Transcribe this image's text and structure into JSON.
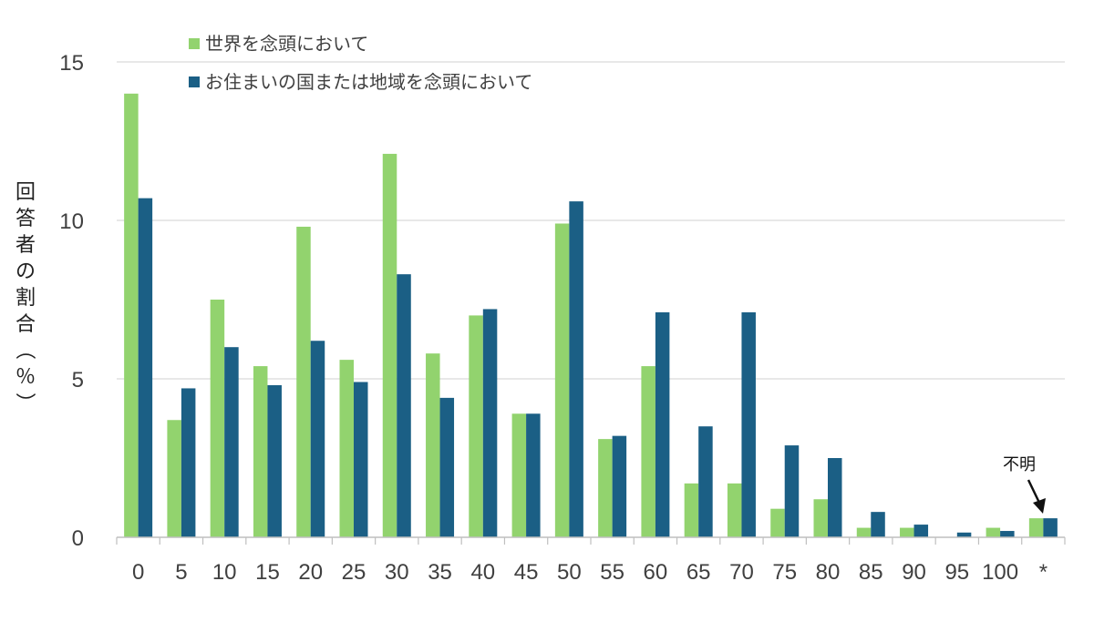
{
  "chart_data": {
    "type": "bar",
    "title": "",
    "xlabel": "",
    "ylabel": "回答者の割合（％）",
    "ylim": [
      0,
      15
    ],
    "yticks": [
      0,
      5,
      10,
      15
    ],
    "grid": true,
    "legend_position": "top-left",
    "categories": [
      "0",
      "5",
      "10",
      "15",
      "20",
      "25",
      "30",
      "35",
      "40",
      "45",
      "50",
      "55",
      "60",
      "65",
      "70",
      "75",
      "80",
      "85",
      "90",
      "95",
      "100",
      "*"
    ],
    "series": [
      {
        "name": "世界を念頭において",
        "color": "#92d36e",
        "values": [
          14.0,
          3.7,
          7.5,
          5.4,
          9.8,
          5.6,
          12.1,
          5.8,
          7.0,
          3.9,
          9.9,
          3.1,
          5.4,
          1.7,
          1.7,
          0.9,
          1.2,
          0.3,
          0.3,
          0.0,
          0.3,
          0.6
        ]
      },
      {
        "name": "お住まいの国または地域を念頭において",
        "color": "#1b5f85",
        "values": [
          10.7,
          4.7,
          6.0,
          4.8,
          6.2,
          4.9,
          8.3,
          4.4,
          7.2,
          3.9,
          10.6,
          3.2,
          7.1,
          3.5,
          7.1,
          2.9,
          2.5,
          0.8,
          0.4,
          0.15,
          0.2,
          0.6
        ]
      }
    ],
    "annotations": [
      {
        "text": "不明",
        "target_category": "*",
        "arrow": true
      }
    ]
  }
}
